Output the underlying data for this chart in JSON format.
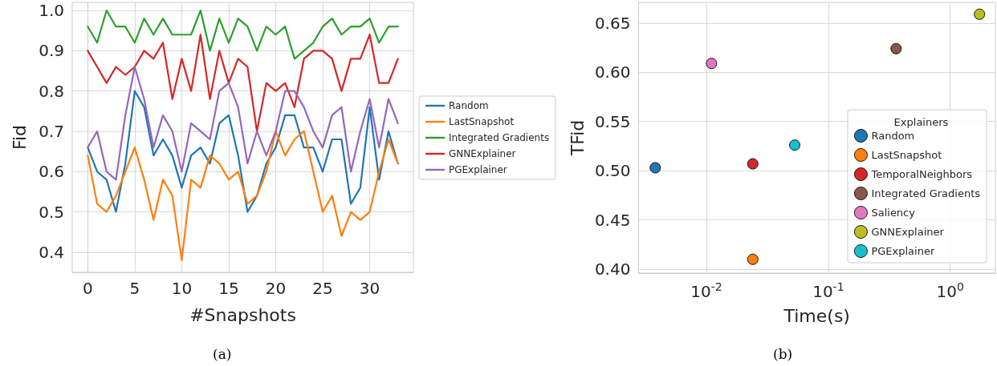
{
  "chart_data": [
    {
      "type": "line",
      "xlabel": "#Snapshots",
      "ylabel": "Fid",
      "annotations": [
        "(a)"
      ],
      "x": [
        0,
        1,
        2,
        3,
        4,
        5,
        6,
        7,
        8,
        9,
        10,
        11,
        12,
        13,
        14,
        15,
        16,
        17,
        18,
        19,
        20,
        21,
        22,
        23,
        24,
        25,
        26,
        27,
        28,
        29,
        30,
        31,
        32,
        33
      ],
      "xlim": [
        -1.65,
        34.65
      ],
      "xticks": [
        0,
        5,
        10,
        15,
        20,
        25,
        30
      ],
      "ylim": [
        0.35,
        1.02
      ],
      "yticks": [
        0.4,
        0.5,
        0.6,
        0.7,
        0.8,
        0.9,
        {
          "value": 1,
          "label": "1.0"
        }
      ],
      "grid": true,
      "legend": "right",
      "marker": "none",
      "line_style": "solid",
      "series": [
        {
          "name": "Random",
          "color": "#1f77b4",
          "values": [
            0.66,
            0.6,
            0.58,
            0.5,
            0.62,
            0.8,
            0.76,
            0.64,
            0.68,
            0.64,
            0.56,
            0.64,
            0.66,
            0.62,
            0.72,
            0.74,
            0.64,
            0.5,
            0.54,
            0.62,
            0.66,
            0.74,
            0.74,
            0.66,
            0.66,
            0.6,
            0.68,
            0.68,
            0.52,
            0.56,
            0.76,
            0.58,
            0.7,
            0.62
          ]
        },
        {
          "name": "LastSnapshot",
          "color": "#ff7f0e",
          "values": [
            0.64,
            0.52,
            0.5,
            0.54,
            0.6,
            0.66,
            0.58,
            0.48,
            0.58,
            0.54,
            0.38,
            0.58,
            0.56,
            0.64,
            0.62,
            0.58,
            0.6,
            0.52,
            0.54,
            0.6,
            0.7,
            0.64,
            0.68,
            0.7,
            0.6,
            0.5,
            0.54,
            0.44,
            0.5,
            0.48,
            0.5,
            0.6,
            0.68,
            0.62
          ]
        },
        {
          "name": "Integrated Gradients",
          "color": "#2ca02c",
          "values": [
            0.96,
            0.92,
            1.0,
            0.96,
            0.96,
            0.92,
            0.98,
            0.94,
            0.98,
            0.94,
            0.94,
            0.94,
            1.0,
            0.9,
            0.98,
            0.92,
            0.98,
            0.96,
            0.9,
            0.96,
            0.94,
            0.96,
            0.88,
            0.9,
            0.92,
            0.96,
            0.98,
            0.94,
            0.96,
            0.96,
            0.98,
            0.92,
            0.96,
            0.96
          ]
        },
        {
          "name": "GNNExplainer",
          "color": "#d62728",
          "values": [
            0.9,
            0.86,
            0.82,
            0.86,
            0.84,
            0.86,
            0.9,
            0.88,
            0.92,
            0.78,
            0.88,
            0.8,
            0.94,
            0.78,
            0.9,
            0.82,
            0.88,
            0.86,
            0.7,
            0.82,
            0.8,
            0.82,
            0.76,
            0.88,
            0.9,
            0.9,
            0.88,
            0.8,
            0.88,
            0.88,
            0.94,
            0.82,
            0.82,
            0.88
          ]
        },
        {
          "name": "PGExplainer",
          "color": "#9467bd",
          "values": [
            0.66,
            0.7,
            0.6,
            0.58,
            0.74,
            0.86,
            0.78,
            0.66,
            0.74,
            0.7,
            0.6,
            0.72,
            0.7,
            0.68,
            0.8,
            0.82,
            0.76,
            0.62,
            0.7,
            0.64,
            0.7,
            0.8,
            0.8,
            0.76,
            0.7,
            0.66,
            0.74,
            0.76,
            0.6,
            0.7,
            0.78,
            0.66,
            0.78,
            0.72
          ]
        }
      ]
    },
    {
      "type": "scatter",
      "xlabel": "Time(s)",
      "ylabel": "TFid",
      "legend_title": "Explainers",
      "annotations": [
        "(b)"
      ],
      "log": "x",
      "xlim": [
        0.00277,
        2.35
      ],
      "xticks": [
        {
          "value": 0.01,
          "label": "10$^{-2}$"
        },
        {
          "value": 0.1,
          "label": "10$^{-1}$"
        },
        {
          "value": 1,
          "label": "10$^{0}$"
        }
      ],
      "ylim": [
        0.396,
        0.671
      ],
      "yticks": [
        {
          "value": 0.4,
          "label": "0.40"
        },
        0.45,
        {
          "value": 0.5,
          "label": "0.50"
        },
        0.55,
        {
          "value": 0.6,
          "label": "0.60"
        },
        0.65
      ],
      "grid": true,
      "legend": "bottom right",
      "marker": "circle",
      "series": [
        {
          "name": "Random",
          "color": "#1f77b4",
          "x": [
            0.0038
          ],
          "values": [
            0.503
          ]
        },
        {
          "name": "LastSnapshot",
          "color": "#ff7f0e",
          "x": [
            0.024
          ],
          "values": [
            0.41
          ]
        },
        {
          "name": "TemporalNeighbors",
          "color": "#d62728",
          "x": [
            0.024
          ],
          "values": [
            0.507
          ]
        },
        {
          "name": "Integrated Gradients",
          "color": "#8c564b",
          "x": [
            0.36
          ],
          "values": [
            0.624
          ]
        },
        {
          "name": "Saliency",
          "color": "#e377c2",
          "x": [
            0.011
          ],
          "values": [
            0.609
          ]
        },
        {
          "name": "GNNExplainer",
          "color": "#bcbd22",
          "x": [
            1.74
          ],
          "values": [
            0.659
          ]
        },
        {
          "name": "PGExplainer",
          "color": "#17becf",
          "x": [
            0.053
          ],
          "values": [
            0.526
          ]
        }
      ]
    }
  ]
}
